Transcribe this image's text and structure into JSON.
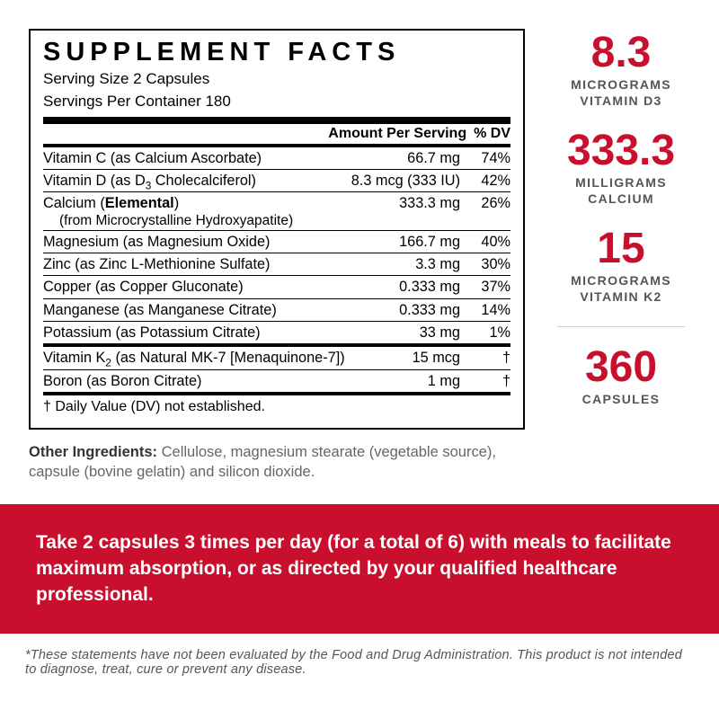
{
  "panel": {
    "title": "SUPPLEMENT FACTS",
    "serving_size": "Serving Size 2 Capsules",
    "servings_per": "Servings Per Container 180",
    "hdr_amount": "Amount Per Serving",
    "hdr_dv": "% DV",
    "rows_a": [
      {
        "name": "Vitamin C (as Calcium Ascorbate)",
        "amt": "66.7 mg",
        "dv": "74%"
      },
      {
        "name": "Vitamin D (as D<sub>3</sub> Cholecalciferol)",
        "amt": "8.3 mcg (333 IU)",
        "dv": "42%"
      },
      {
        "name": "Calcium (<b>Elemental</b>)",
        "sub": "(from Microcrystalline Hydroxyapatite)",
        "amt": "333.3 mg",
        "dv": "26%"
      },
      {
        "name": "Magnesium (as Magnesium Oxide)",
        "amt": "166.7 mg",
        "dv": "40%"
      },
      {
        "name": "Zinc (as Zinc L-Methionine Sulfate)",
        "amt": "3.3 mg",
        "dv": "30%"
      },
      {
        "name": "Copper (as Copper Gluconate)",
        "amt": "0.333 mg",
        "dv": "37%"
      },
      {
        "name": "Manganese (as Manganese Citrate)",
        "amt": "0.333 mg",
        "dv": "14%"
      },
      {
        "name": "Potassium (as Potassium Citrate)",
        "amt": "33 mg",
        "dv": "1%"
      }
    ],
    "rows_b": [
      {
        "name": "Vitamin K<sub>2</sub> (as Natural MK-7 [Menaquinone-7])",
        "amt": "15 mcg",
        "dv": "†"
      },
      {
        "name": "Boron (as Boron Citrate)",
        "amt": "1 mg",
        "dv": "†"
      }
    ],
    "dv_note": "† Daily Value (DV) not established.",
    "other_label": "Other Ingredients:",
    "other_text": " Cellulose, magnesium stearate (vegetable source), capsule (bovine gelatin) and silicon dioxide."
  },
  "callouts": [
    {
      "big": "8.3",
      "big_size": "48px",
      "l1": "MICROGRAMS",
      "l2": "VITAMIN D3"
    },
    {
      "big": "333.3",
      "big_size": "48px",
      "l1": "MILLIGRAMS",
      "l2": "CALCIUM"
    },
    {
      "big": "15",
      "big_size": "48px",
      "l1": "MICROGRAMS",
      "l2": "VITAMIN K2"
    },
    {
      "sep": true
    },
    {
      "big": "360",
      "big_size": "48px",
      "l1": "CAPSULES"
    }
  ],
  "directions": "Take 2 capsules 3 times per day (for a total of 6) with meals to facilitate maximum absorption, or as directed by your qualified healthcare professional.",
  "disclaimer": "*These statements have not been evaluated by the Food and Drug Administration. This product is not intended to diagnose, treat, cure or prevent any disease.",
  "colors": {
    "accent": "#c8102e",
    "text": "#000",
    "muted": "#666"
  }
}
